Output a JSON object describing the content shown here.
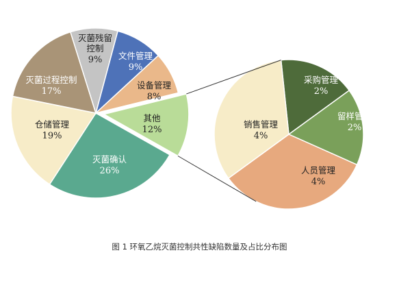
{
  "caption": "图 1  环氧乙烷灭菌控制共性缺陷数量及占比分布图",
  "chart_data": [
    {
      "type": "pie",
      "title": "",
      "slices": [
        {
          "label": "文件管理",
          "value": 9,
          "display": "9%",
          "color": "#4e72b8"
        },
        {
          "label": "设备管理",
          "value": 8,
          "display": "8%",
          "color": "#eab88a"
        },
        {
          "label": "其他",
          "value": 12,
          "display": "12%",
          "color": "#b9dc98"
        },
        {
          "label": "灭菌确认",
          "value": 26,
          "display": "26%",
          "color": "#5aa98f"
        },
        {
          "label": "仓储管理",
          "value": 19,
          "display": "19%",
          "color": "#f7ecc8"
        },
        {
          "label": "灭菌过程控制",
          "value": 17,
          "display": "17%",
          "color": "#a99477"
        },
        {
          "label": "灭菌残留控制",
          "value": 9,
          "display": "9%",
          "color": "#c4c4c4"
        }
      ],
      "exploded_slice": "其他"
    },
    {
      "type": "pie",
      "title": "",
      "slices": [
        {
          "label": "采购管理",
          "value": 2,
          "display": "2%",
          "color": "#4e6b3a"
        },
        {
          "label": "留样管理",
          "value": 2,
          "display": "2%",
          "color": "#7aa05a"
        },
        {
          "label": "人员管理",
          "value": 4,
          "display": "4%",
          "color": "#e7a97e"
        },
        {
          "label": "销售管理",
          "value": 4,
          "display": "4%",
          "color": "#f7ecc8"
        }
      ]
    }
  ]
}
